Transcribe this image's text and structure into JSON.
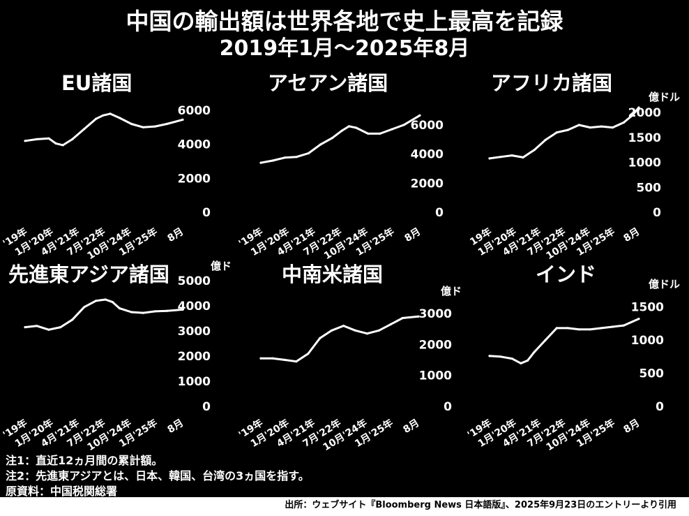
{
  "title": "中国の輸出額は世界各地で史上最高を記録",
  "subtitle": "2019年1月～2025年8月",
  "notes": [
    "注1：直近12ヵ月間の累計額。",
    "注2：先進東アジアとは、日本、韓国、台湾の3ヵ国を指す。",
    "原資料：中国税関総署"
  ],
  "footer": "出所：ウェブサイト『Bloomberg News 日本語版』、2025年9月23日のエントリーより引用",
  "colors": {
    "background": "#000000",
    "line": "#ffffff",
    "text": "#ffffff",
    "footer_bg": "#ffffff"
  },
  "chart_data": [
    {
      "type": "line",
      "title": "EU諸国",
      "yunit": "",
      "ylim": [
        0,
        6000
      ],
      "yticks": [
        "6000",
        "4000",
        "2000",
        "0"
      ],
      "xticks": [
        "'19年",
        "1月'20年",
        "4月'21年",
        "7月'22年",
        "10月'24年",
        "1月'25年",
        "8月"
      ],
      "x": [
        2019.0,
        2019.5,
        2020.0,
        2020.3,
        2020.6,
        2021.0,
        2021.5,
        2022.0,
        2022.3,
        2022.6,
        2023.0,
        2023.5,
        2024.0,
        2024.5,
        2025.0,
        2025.67
      ],
      "values": [
        4200,
        4300,
        4350,
        4050,
        3950,
        4300,
        4900,
        5500,
        5700,
        5800,
        5550,
        5200,
        5000,
        5050,
        5200,
        5450
      ]
    },
    {
      "type": "line",
      "title": "アセアン諸国",
      "yunit": "",
      "ylim": [
        0,
        7000
      ],
      "yticks": [
        "6000",
        "4000",
        "2000",
        "0"
      ],
      "xticks": [
        "'19年",
        "1月'20年",
        "4月'21年",
        "7月'22年",
        "10月'24年",
        "1月'25年",
        "8月"
      ],
      "x": [
        2019.0,
        2019.5,
        2020.0,
        2020.5,
        2021.0,
        2021.5,
        2022.0,
        2022.4,
        2022.7,
        2023.0,
        2023.5,
        2024.0,
        2024.5,
        2025.0,
        2025.67
      ],
      "values": [
        3400,
        3550,
        3750,
        3800,
        4050,
        4650,
        5100,
        5600,
        5900,
        5800,
        5400,
        5400,
        5700,
        6000,
        6650
      ]
    },
    {
      "type": "line",
      "title": "アフリカ諸国",
      "yunit": "億ドル",
      "ylim": [
        0,
        2100
      ],
      "yticks": [
        "2000",
        "1500",
        "1000",
        "500",
        "0"
      ],
      "xticks": [
        "19年",
        "1月'20年",
        "4月'21年",
        "7月'22年",
        "10月'24年",
        "1月'25年",
        "8月"
      ],
      "x": [
        2019.0,
        2019.5,
        2020.0,
        2020.5,
        2021.0,
        2021.5,
        2022.0,
        2022.5,
        2023.0,
        2023.5,
        2024.0,
        2024.5,
        2025.0,
        2025.4,
        2025.67
      ],
      "values": [
        1080,
        1110,
        1140,
        1100,
        1250,
        1450,
        1600,
        1650,
        1750,
        1700,
        1720,
        1700,
        1800,
        1950,
        2100
      ]
    },
    {
      "type": "line",
      "title": "先進東アジア諸国",
      "yunit": "億ドル",
      "ylim": [
        0,
        5000
      ],
      "yticks": [
        "5000",
        "4000",
        "3000",
        "2000",
        "1000",
        "0"
      ],
      "xticks": [
        "'19年",
        "1月'20年",
        "4月'21年",
        "7月'22年",
        "10月'24年",
        "1月'25年",
        "8月"
      ],
      "x": [
        2019.0,
        2019.5,
        2020.0,
        2020.5,
        2021.0,
        2021.5,
        2022.0,
        2022.4,
        2022.7,
        2023.0,
        2023.5,
        2024.0,
        2024.5,
        2025.0,
        2025.67
      ],
      "values": [
        3150,
        3200,
        3050,
        3150,
        3450,
        3950,
        4200,
        4250,
        4150,
        3900,
        3750,
        3720,
        3780,
        3800,
        3850
      ]
    },
    {
      "type": "line",
      "title": "中南米諸国",
      "yunit": "億ドル",
      "ylim": [
        0,
        3200
      ],
      "yticks": [
        "3000",
        "2000",
        "1000",
        "0"
      ],
      "xticks": [
        "'19年",
        "1月'20年",
        "4月'21年",
        "7月'22年",
        "10月'24年",
        "1月'25年",
        "8月"
      ],
      "x": [
        2019.0,
        2019.5,
        2020.0,
        2020.5,
        2021.0,
        2021.5,
        2022.0,
        2022.5,
        2023.0,
        2023.5,
        2024.0,
        2024.5,
        2025.0,
        2025.67
      ],
      "values": [
        1550,
        1550,
        1500,
        1450,
        1700,
        2200,
        2450,
        2600,
        2450,
        2350,
        2450,
        2650,
        2850,
        2900
      ]
    },
    {
      "type": "line",
      "title": "インド",
      "yunit": "億ドル",
      "ylim": [
        0,
        1600
      ],
      "yticks": [
        "1500",
        "1000",
        "500",
        "0"
      ],
      "xticks": [
        "'19年",
        "1月'20年",
        "4月'21年",
        "7月'22年",
        "10月'24年",
        "1月'25年",
        "8月"
      ],
      "x": [
        2019.0,
        2019.5,
        2020.0,
        2020.4,
        2020.7,
        2021.0,
        2021.5,
        2022.0,
        2022.5,
        2023.0,
        2023.5,
        2024.0,
        2024.5,
        2025.0,
        2025.67
      ],
      "values": [
        760,
        750,
        720,
        650,
        690,
        820,
        1000,
        1180,
        1180,
        1160,
        1160,
        1180,
        1200,
        1220,
        1320
      ]
    }
  ]
}
